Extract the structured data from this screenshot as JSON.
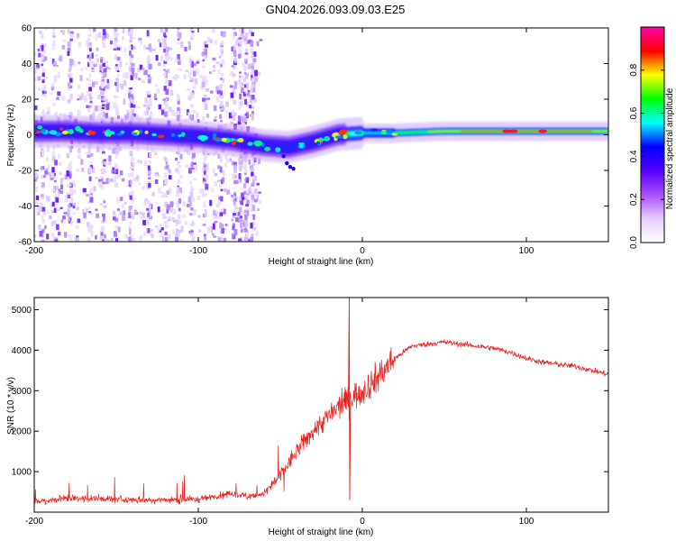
{
  "title": "GN04.2026.093.09.03.E25",
  "colors": {
    "snr_line": "#e8201c",
    "axis": "#000000",
    "background": "#ffffff"
  },
  "chart_data": [
    {
      "type": "heatmap",
      "name": "spectrogram",
      "xlabel": "Height of straight line (km)",
      "ylabel": "Frequency (Hz)",
      "xlim": [
        -200,
        150
      ],
      "ylim": [
        -60,
        60
      ],
      "xticks": [
        -200,
        -100,
        0,
        100
      ],
      "yticks": [
        -60,
        -40,
        -20,
        0,
        20,
        40,
        60
      ],
      "colorbar": {
        "label": "Normalized spectral amplitude",
        "range": [
          0,
          1
        ],
        "ticks": [
          0.0,
          0.2,
          0.4,
          0.6,
          0.8
        ],
        "colormap": [
          "#ffffff",
          "#e6ccff",
          "#a64dff",
          "#5500ff",
          "#0000ff",
          "#00ffff",
          "#00ff00",
          "#ffff00",
          "#ff0000",
          "#ff00aa"
        ]
      },
      "ridge": [
        {
          "x": -200,
          "f": 2
        },
        {
          "x": -180,
          "f": 2
        },
        {
          "x": -160,
          "f": 1
        },
        {
          "x": -140,
          "f": 1
        },
        {
          "x": -120,
          "f": 0
        },
        {
          "x": -100,
          "f": -1
        },
        {
          "x": -80,
          "f": -3
        },
        {
          "x": -60,
          "f": -6
        },
        {
          "x": -45,
          "f": -7
        },
        {
          "x": -30,
          "f": -4
        },
        {
          "x": -15,
          "f": 0
        },
        {
          "x": 0,
          "f": 1
        },
        {
          "x": 20,
          "f": 1
        },
        {
          "x": 50,
          "f": 2
        },
        {
          "x": 100,
          "f": 2
        },
        {
          "x": 150,
          "f": 2
        }
      ]
    },
    {
      "type": "line",
      "name": "snr",
      "xlabel": "Height of straight line (km)",
      "ylabel": "SNR (10 * v/v)",
      "xlim": [
        -200,
        150
      ],
      "ylim": [
        0,
        5300
      ],
      "xticks": [
        -200,
        -100,
        0,
        100
      ],
      "yticks": [
        1000,
        2000,
        3000,
        4000,
        5000
      ],
      "series": [
        {
          "name": "SNR",
          "x": [
            -200,
            -180,
            -160,
            -140,
            -120,
            -100,
            -90,
            -80,
            -70,
            -60,
            -50,
            -40,
            -30,
            -20,
            -10,
            0,
            10,
            20,
            30,
            40,
            50,
            60,
            70,
            80,
            90,
            100,
            110,
            120,
            130,
            140,
            150
          ],
          "values": [
            250,
            350,
            330,
            300,
            300,
            320,
            380,
            450,
            400,
            450,
            900,
            1500,
            2000,
            2400,
            2750,
            3000,
            3350,
            3800,
            4100,
            4150,
            4200,
            4150,
            4100,
            4050,
            3950,
            3800,
            3700,
            3650,
            3600,
            3500,
            3400
          ]
        }
      ],
      "annotations": [
        {
          "label": "spike",
          "x": -8,
          "y": 5300
        }
      ]
    }
  ]
}
